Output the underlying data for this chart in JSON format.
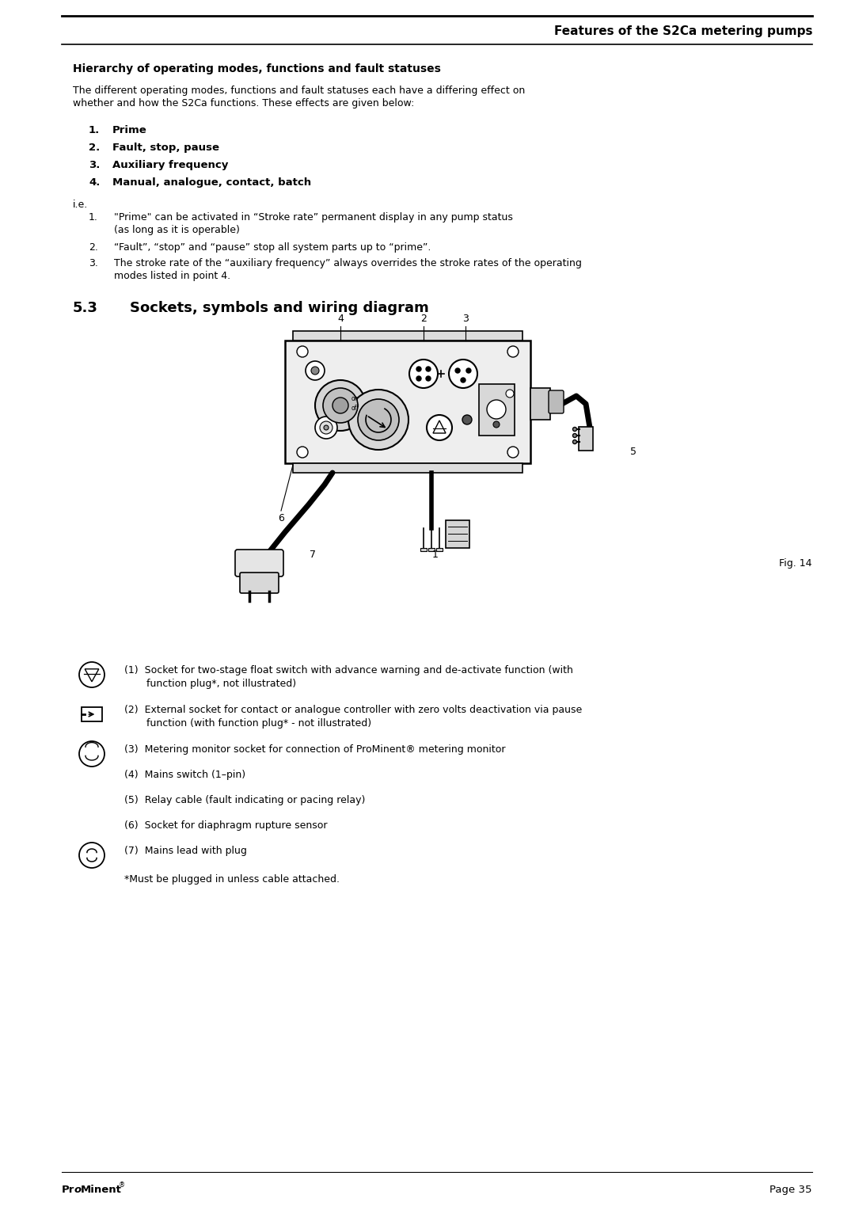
{
  "bg_color": "#ffffff",
  "text_color": "#000000",
  "page_width": 10.8,
  "page_height": 15.28,
  "header_title": "Features of the S2Ca metering pumps",
  "section_title": "Hierarchy of operating modes, functions and fault statuses",
  "section_intro_1": "The different operating modes, functions and fault statuses each have a differing effect on",
  "section_intro_2": "whether and how the S2Ca functions. These effects are given below:",
  "numbered_items": [
    "Prime",
    "Fault, stop, pause",
    "Auxiliary frequency",
    "Manual, analogue, contact, batch"
  ],
  "ie_label": "i.e.",
  "ie_items": [
    [
      "“Prime” can be activated in “Stroke rate” permanent display in any pump status",
      "(as long as it is operable)"
    ],
    [
      "“Fault”, “stop” and “pause” stop all system parts up to “prime”."
    ],
    [
      "The stroke rate of the “auxiliary frequency” always overrides the stroke rates of the operating",
      "modes listed in point 4."
    ]
  ],
  "section53_num": "5.3",
  "section53_title": "Sockets, symbols and wiring diagram",
  "fig_label": "Fig. 14",
  "legend_items": [
    {
      "has_icon": true,
      "icon_type": "float_switch",
      "lines": [
        "(1)  Socket for two-stage float switch with advance warning and de-activate function (with",
        "       function plug*, not illustrated)"
      ]
    },
    {
      "has_icon": true,
      "icon_type": "rect_arrow",
      "lines": [
        "(2)  External socket for contact or analogue controller with zero volts deactivation via pause",
        "       function (with function plug* - not illustrated)"
      ]
    },
    {
      "has_icon": true,
      "icon_type": "monitor_socket",
      "lines": [
        "(3)  Metering monitor socket for connection of ProMinent® metering monitor"
      ]
    },
    {
      "has_icon": false,
      "icon_type": "",
      "lines": [
        "(4)  Mains switch (1–pin)"
      ]
    },
    {
      "has_icon": false,
      "icon_type": "",
      "lines": [
        "(5)  Relay cable (fault indicating or pacing relay)"
      ]
    },
    {
      "has_icon": false,
      "icon_type": "",
      "lines": [
        "(6)  Socket for diaphragm rupture sensor"
      ]
    },
    {
      "has_icon": true,
      "icon_type": "mains_plug",
      "lines": [
        "(7)  Mains lead with plug"
      ]
    }
  ],
  "footnote": "*Must be plugged in unless cable attached.",
  "footer_brand_1": "Pr",
  "footer_brand_2": "o",
  "footer_brand_3": "Minent",
  "footer_right": "Page 35"
}
